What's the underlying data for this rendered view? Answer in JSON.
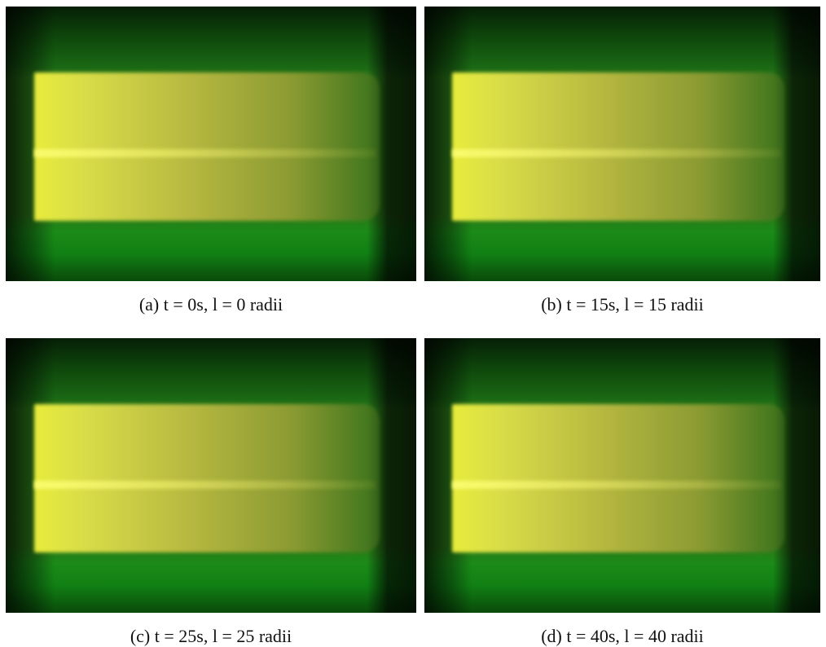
{
  "figure": {
    "panels": [
      {
        "caption": "(a) t = 0s, l = 0 radii"
      },
      {
        "caption": "(b) t = 15s, l = 15 radii"
      },
      {
        "caption": "(c) t = 25s, l = 25 radii"
      },
      {
        "caption": "(d) t = 40s, l = 40 radii"
      }
    ]
  }
}
